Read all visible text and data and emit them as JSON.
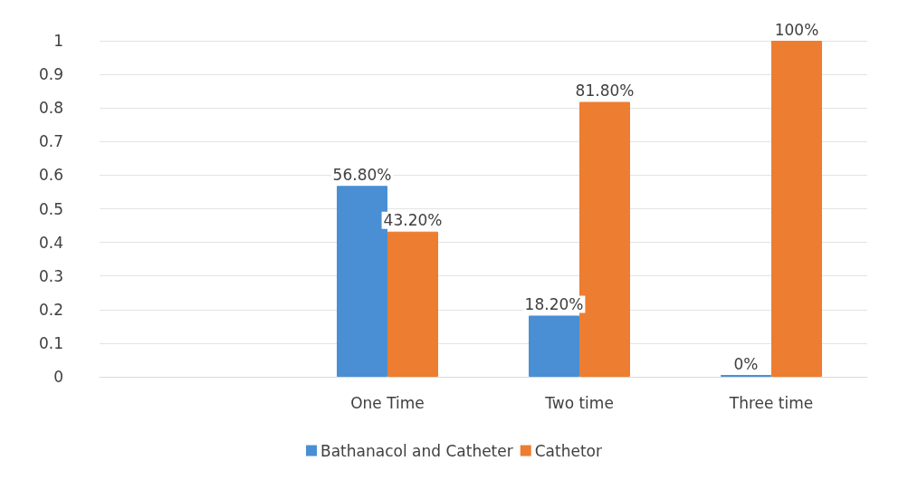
{
  "chart_data": {
    "type": "bar",
    "categories": [
      null,
      "One Time",
      "Two time",
      "Three time"
    ],
    "series": [
      {
        "name": "Bathanacol and Catheter",
        "color": "#4a8fd4",
        "values": [
          null,
          0.568,
          0.182,
          0
        ],
        "value_labels": [
          null,
          "56.80%",
          "18.20%",
          "0%"
        ]
      },
      {
        "name": "Cathetor",
        "color": "#ed7d31",
        "values": [
          null,
          0.432,
          0.818,
          1
        ],
        "value_labels": [
          null,
          "43.20%",
          "81.80%",
          "100%"
        ]
      }
    ],
    "ylim": [
      0,
      1
    ],
    "yticks": [
      0,
      0.1,
      0.2,
      0.3,
      0.4,
      0.5,
      0.6,
      0.7,
      0.8,
      0.9,
      1
    ],
    "grid": "y",
    "legend": "bottom"
  }
}
